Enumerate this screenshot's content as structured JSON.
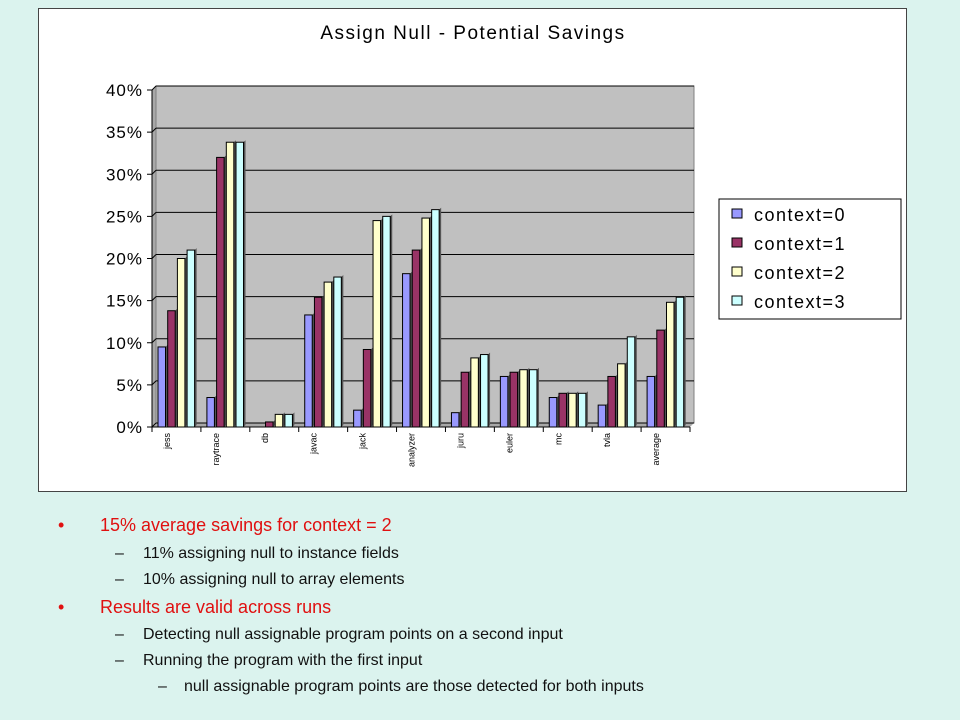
{
  "chart_data": {
    "type": "bar",
    "title": "Assign Null - Potential Savings",
    "categories": [
      "jess",
      "raytrace",
      "db",
      "javac",
      "jack",
      "analyzer",
      "juru",
      "euler",
      "mc",
      "tvla",
      "average"
    ],
    "ylim": [
      0,
      40
    ],
    "yticks": [
      "0%",
      "5%",
      "10%",
      "15%",
      "20%",
      "25%",
      "30%",
      "35%",
      "40%"
    ],
    "grid": true,
    "legend_position": "right",
    "series": [
      {
        "name": "context=0",
        "color": "#9999ff",
        "values": [
          9.5,
          3.5,
          0,
          13.3,
          2,
          18.2,
          1.7,
          6,
          3.5,
          2.6,
          6
        ]
      },
      {
        "name": "context=1",
        "color": "#993366",
        "values": [
          13.8,
          32,
          0.6,
          15.4,
          9.2,
          21,
          6.5,
          6.5,
          4,
          6,
          11.5
        ]
      },
      {
        "name": "context=2",
        "color": "#ffffcc",
        "values": [
          20,
          33.8,
          1.5,
          17.2,
          24.5,
          24.8,
          8.2,
          6.8,
          4,
          7.5,
          14.8
        ]
      },
      {
        "name": "context=3",
        "color": "#ccffff",
        "values": [
          21,
          33.8,
          1.5,
          17.8,
          25,
          25.8,
          8.6,
          6.8,
          4,
          10.7,
          15.4
        ]
      }
    ],
    "colors": {
      "plot_area": "#c0c0c0",
      "frame": "#ffffff"
    }
  },
  "bullets": {
    "b1": {
      "bullet": "•",
      "text": "15% average savings for context = 2"
    },
    "b1_1": {
      "dash": "–",
      "text": "11% assigning null to instance fields"
    },
    "b1_2": {
      "dash": "–",
      "text": "10% assigning null to array elements"
    },
    "b2": {
      "bullet": "•",
      "text": "Results are valid across runs"
    },
    "b2_1": {
      "dash": "–",
      "text": "Detecting null assignable program points on a second input"
    },
    "b2_2": {
      "dash": "–",
      "text": "Running the program with the first input"
    },
    "b2_2_1": {
      "dash": "–",
      "text": "null assignable program points are those detected for both inputs"
    }
  }
}
